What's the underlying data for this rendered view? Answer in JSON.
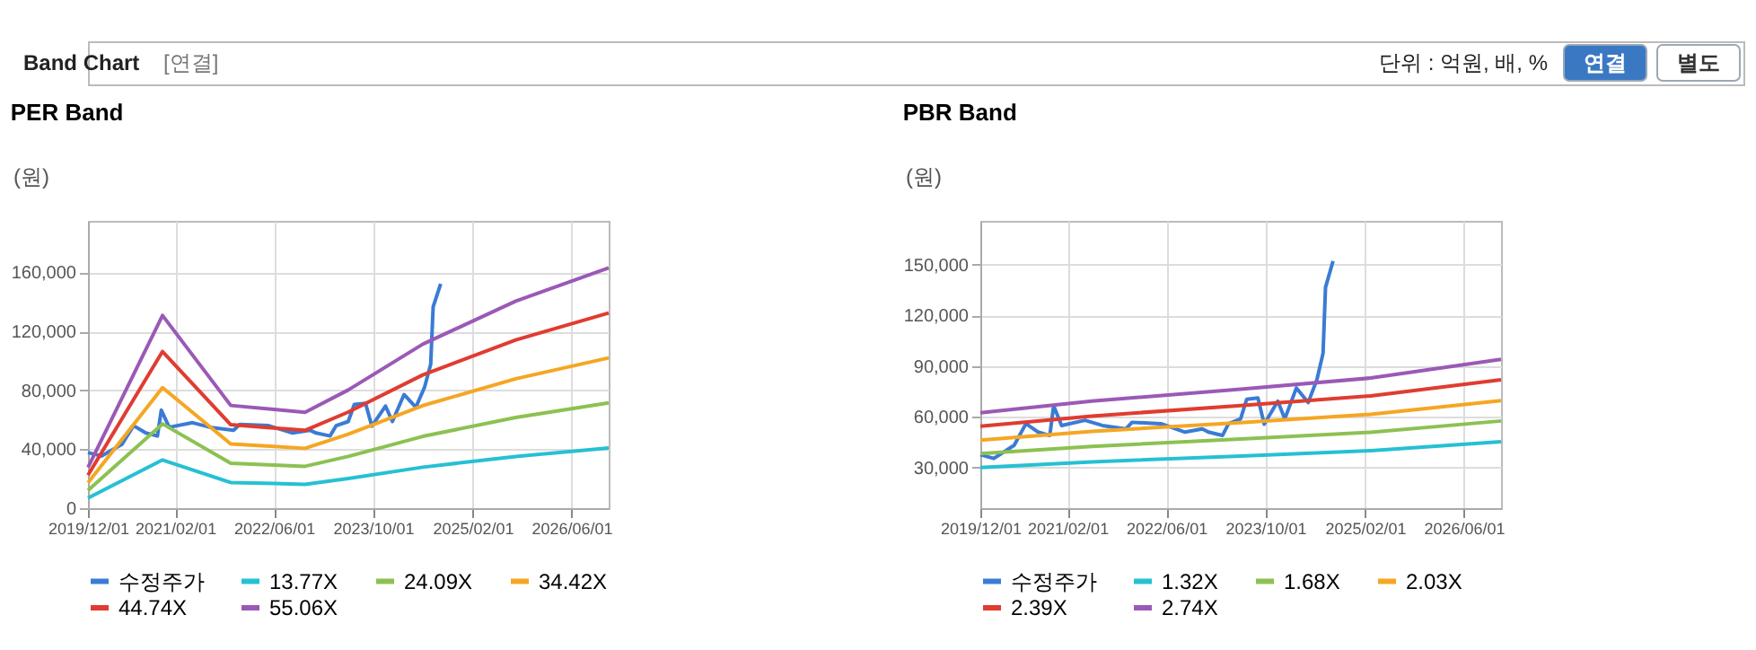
{
  "chart_data": [
    {
      "type": "line",
      "title": "PER Band",
      "ylabel": "(원)",
      "annotations": [
        "Band Chart",
        "[연결]",
        "단위 : 억원, 배, %",
        "연결",
        "별도"
      ],
      "xlim": [
        "2019-12-01",
        "2026-12-01"
      ],
      "xticks": [
        {
          "value": "2019-12-01",
          "label": "2019/12/01"
        },
        {
          "value": "2021-02-01",
          "label": "2021/02/01"
        },
        {
          "value": "2022-06-01",
          "label": "2022/06/01"
        },
        {
          "value": "2023-10-01",
          "label": "2023/10/01"
        },
        {
          "value": "2025-02-01",
          "label": "2025/02/01"
        },
        {
          "value": "2026-06-01",
          "label": "2026/06/01"
        }
      ],
      "ylim": [
        0,
        195000
      ],
      "yticks": [
        {
          "value": 0,
          "label": "0"
        },
        {
          "value": 40000,
          "label": "40,000"
        },
        {
          "value": 80000,
          "label": "80,000"
        },
        {
          "value": 120000,
          "label": "120,000"
        },
        {
          "value": 160000,
          "label": "160,000"
        }
      ],
      "grid": true,
      "legend": "bottom",
      "series": [
        {
          "name": "수정주가",
          "color": "#3a7bd5",
          "x": [
            "2019-12-01",
            "2020-02-05",
            "2020-05-15",
            "2020-07-12",
            "2020-09-10",
            "2020-11-06",
            "2020-11-25",
            "2021-01-03",
            "2021-04-28",
            "2021-07-22",
            "2021-11-15",
            "2021-12-15",
            "2022-05-06",
            "2022-09-01",
            "2022-11-25",
            "2022-12-25",
            "2023-03-04",
            "2023-04-03",
            "2023-06-01",
            "2023-07-01",
            "2023-08-25",
            "2023-09-25",
            "2023-12-01",
            "2024-01-04",
            "2024-03-01",
            "2024-04-28",
            "2024-06-10",
            "2024-07-10",
            "2024-07-22",
            "2024-08-28"
          ],
          "values": [
            37700,
            35400,
            43200,
            56000,
            51000,
            49000,
            66500,
            54900,
            58000,
            54900,
            52900,
            56800,
            56000,
            51000,
            52900,
            51000,
            49000,
            56000,
            58800,
            70400,
            71200,
            55700,
            69300,
            58800,
            77100,
            68500,
            82100,
            97700,
            136600,
            152200
          ]
        },
        {
          "name": "13.77X",
          "color": "#26c0d3",
          "x": [
            "2019-12-01",
            "2020-12-01",
            "2021-11-01",
            "2022-06-01",
            "2022-11-01",
            "2023-06-01",
            "2024-06-01",
            "2025-09-01",
            "2026-12-01"
          ],
          "values": [
            6900,
            32700,
            17400,
            16800,
            16200,
            20100,
            27800,
            35100,
            40800
          ]
        },
        {
          "name": "24.09X",
          "color": "#8cc152",
          "x": [
            "2019-12-01",
            "2020-12-01",
            "2021-11-01",
            "2022-06-01",
            "2022-11-01",
            "2023-06-01",
            "2024-06-01",
            "2025-09-01",
            "2026-12-01"
          ],
          "values": [
            12100,
            57200,
            30500,
            29300,
            28400,
            35100,
            48700,
            61500,
            71400
          ]
        },
        {
          "name": "34.42X",
          "color": "#f5a623",
          "x": [
            "2019-12-01",
            "2020-12-01",
            "2021-11-01",
            "2022-06-01",
            "2022-11-01",
            "2023-06-01",
            "2024-06-01",
            "2025-09-01",
            "2026-12-01"
          ],
          "values": [
            17200,
            81800,
            43600,
            41900,
            40600,
            50200,
            69600,
            87800,
            102000
          ]
        },
        {
          "name": "44.74X",
          "color": "#e03c31",
          "x": [
            "2019-12-01",
            "2020-12-01",
            "2021-11-01",
            "2022-06-01",
            "2022-11-01",
            "2023-06-01",
            "2024-06-01",
            "2025-09-01",
            "2026-12-01"
          ],
          "values": [
            22400,
            106300,
            56600,
            54400,
            52800,
            65200,
            90400,
            114200,
            132500
          ]
        },
        {
          "name": "55.06X",
          "color": "#9b59b6",
          "x": [
            "2019-12-01",
            "2020-12-01",
            "2021-11-01",
            "2022-06-01",
            "2022-11-01",
            "2023-06-01",
            "2024-06-01",
            "2025-09-01",
            "2026-12-01"
          ],
          "values": [
            27600,
            130800,
            69700,
            67000,
            65000,
            80200,
            111300,
            140500,
            163100
          ]
        }
      ]
    },
    {
      "type": "line",
      "title": "PBR Band",
      "ylabel": "(원)",
      "xlim": [
        "2019-12-01",
        "2026-12-01"
      ],
      "xticks": [
        {
          "value": "2019-12-01",
          "label": "2019/12/01"
        },
        {
          "value": "2021-02-01",
          "label": "2021/02/01"
        },
        {
          "value": "2022-06-01",
          "label": "2022/06/01"
        },
        {
          "value": "2023-10-01",
          "label": "2023/10/01"
        },
        {
          "value": "2025-02-01",
          "label": "2025/02/01"
        },
        {
          "value": "2026-06-01",
          "label": "2026/06/01"
        }
      ],
      "ylim": [
        6000,
        176000
      ],
      "yticks": [
        {
          "value": 30000,
          "label": "30,000"
        },
        {
          "value": 60000,
          "label": "60,000"
        },
        {
          "value": 90000,
          "label": "90,000"
        },
        {
          "value": 120000,
          "label": "120,000"
        },
        {
          "value": 150000,
          "label": "150,000"
        }
      ],
      "grid": true,
      "legend": "bottom",
      "series": [
        {
          "name": "수정주가",
          "color": "#3a7bd5",
          "x": [
            "2019-12-01",
            "2020-02-05",
            "2020-05-15",
            "2020-07-12",
            "2020-09-10",
            "2020-11-06",
            "2020-11-25",
            "2021-01-03",
            "2021-04-28",
            "2021-07-22",
            "2021-11-15",
            "2021-12-15",
            "2022-05-06",
            "2022-09-01",
            "2022-11-25",
            "2022-12-25",
            "2023-03-04",
            "2023-04-03",
            "2023-06-01",
            "2023-07-01",
            "2023-08-25",
            "2023-09-25",
            "2023-12-01",
            "2024-01-04",
            "2024-03-01",
            "2024-04-28",
            "2024-06-10",
            "2024-07-10",
            "2024-07-22",
            "2024-08-28"
          ],
          "values": [
            37700,
            35400,
            43200,
            56000,
            51000,
            49000,
            66500,
            54900,
            58000,
            54900,
            52900,
            56800,
            56000,
            51000,
            52900,
            51000,
            49000,
            56000,
            58800,
            70400,
            71200,
            55700,
            69300,
            58800,
            77100,
            68500,
            82100,
            97700,
            136600,
            152200
          ]
        },
        {
          "name": "1.32X",
          "color": "#26c0d3",
          "x": [
            "2019-12-01",
            "2021-06-01",
            "2023-06-01",
            "2025-03-01",
            "2026-12-01"
          ],
          "values": [
            30100,
            33400,
            36800,
            40000,
            45300
          ]
        },
        {
          "name": "1.68X",
          "color": "#8cc152",
          "x": [
            "2019-12-01",
            "2021-06-01",
            "2023-06-01",
            "2025-03-01",
            "2026-12-01"
          ],
          "values": [
            38300,
            42500,
            46900,
            50900,
            57600
          ]
        },
        {
          "name": "2.03X",
          "color": "#f5a623",
          "x": [
            "2019-12-01",
            "2021-06-01",
            "2023-06-01",
            "2025-03-01",
            "2026-12-01"
          ],
          "values": [
            46300,
            51400,
            56600,
            61500,
            69600
          ]
        },
        {
          "name": "2.39X",
          "color": "#e03c31",
          "x": [
            "2019-12-01",
            "2021-06-01",
            "2023-06-01",
            "2025-03-01",
            "2026-12-01"
          ],
          "values": [
            54500,
            60500,
            66700,
            72400,
            82000
          ]
        },
        {
          "name": "2.74X",
          "color": "#9b59b6",
          "x": [
            "2019-12-01",
            "2021-06-01",
            "2023-06-01",
            "2025-03-01",
            "2026-12-01"
          ],
          "values": [
            62500,
            69300,
            76400,
            83000,
            94000
          ]
        }
      ]
    }
  ]
}
